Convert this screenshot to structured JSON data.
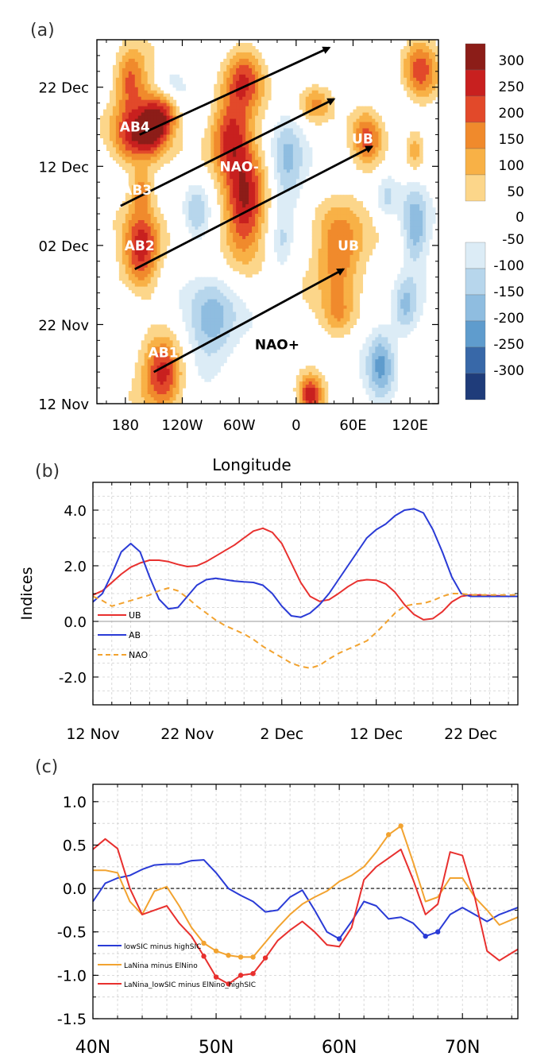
{
  "panel_labels": [
    "(a)",
    "(b)",
    "(c)"
  ],
  "chart_data": [
    {
      "panel": "(a)",
      "type": "heatmap",
      "xlabel": "Longitude",
      "ylabel": "",
      "x_ticks": [
        "180",
        "120W",
        "60W",
        "0",
        "60E",
        "120E"
      ],
      "x_tick_values": [
        -180,
        -120,
        -60,
        0,
        60,
        120
      ],
      "y_ticks": [
        "12 Nov",
        "22 Nov",
        "02 Dec",
        "12 Dec",
        "22 Dec"
      ],
      "y_tick_days": [
        0,
        10,
        20,
        30,
        40
      ],
      "xlim": [
        -210,
        150
      ],
      "ylim_days": [
        0,
        46
      ],
      "colorbar_levels": [
        300,
        250,
        200,
        150,
        100,
        50,
        0,
        -50,
        -100,
        -150,
        -200,
        -250,
        -300
      ],
      "colorbar_colors": [
        "#8c1d18",
        "#c8201f",
        "#e2492a",
        "#f08a2c",
        "#f8b146",
        "#fcd68a",
        "#fdeebb",
        "#ffffff",
        "#dcecf6",
        "#b7d6ec",
        "#8fbde0",
        "#5f9ccd",
        "#3868a8",
        "#1f3c7a",
        "#13234d"
      ],
      "annotations": [
        {
          "label": "AB4",
          "x": -170,
          "y": 35
        },
        {
          "label": "AB3",
          "x": -168,
          "y": 27
        },
        {
          "label": "AB2",
          "x": -165,
          "y": 20
        },
        {
          "label": "AB1",
          "x": -140,
          "y": 6.5
        },
        {
          "label": "NAO-",
          "x": -60,
          "y": 30
        },
        {
          "label": "NAO+",
          "x": -20,
          "y": 7.5
        },
        {
          "label": "UB",
          "x": 55,
          "y": 20
        },
        {
          "label": "UB",
          "x": 70,
          "y": 33.5
        }
      ],
      "arrows": [
        {
          "x1": -150,
          "y1": 4,
          "x2": 50,
          "y2": 17
        },
        {
          "x1": -170,
          "y1": 17,
          "x2": 80,
          "y2": 32.5
        },
        {
          "x1": -185,
          "y1": 25,
          "x2": 40,
          "y2": 38.5
        },
        {
          "x1": -165,
          "y1": 34,
          "x2": 35,
          "y2": 45
        }
      ],
      "features": [
        {
          "cx": -175,
          "cy": 41,
          "rx": 18,
          "ry": 4,
          "peak": 230
        },
        {
          "cx": -135,
          "cy": 37,
          "rx": 14,
          "ry": 3,
          "peak": 180
        },
        {
          "cx": -170,
          "cy": 34,
          "rx": 25,
          "ry": 4,
          "peak": 290
        },
        {
          "cx": -150,
          "cy": 35.5,
          "rx": 14,
          "ry": 3.5,
          "peak": 220
        },
        {
          "cx": -163,
          "cy": 27,
          "rx": 12,
          "ry": 2.5,
          "peak": 150
        },
        {
          "cx": -163,
          "cy": 19.5,
          "rx": 20,
          "ry": 5.5,
          "peak": 300
        },
        {
          "cx": -55,
          "cy": 25,
          "rx": 22,
          "ry": 7,
          "peak": 320
        },
        {
          "cx": -70,
          "cy": 34,
          "rx": 22,
          "ry": 5,
          "peak": 270
        },
        {
          "cx": -55,
          "cy": 41,
          "rx": 20,
          "ry": 4,
          "peak": 210
        },
        {
          "cx": 45,
          "cy": 19,
          "rx": 26,
          "ry": 6.5,
          "peak": 230
        },
        {
          "cx": 45,
          "cy": 11,
          "rx": 16,
          "ry": 3,
          "peak": 110
        },
        {
          "cx": 75,
          "cy": 33.5,
          "rx": 16,
          "ry": 3.5,
          "peak": 190
        },
        {
          "cx": 20,
          "cy": 38,
          "rx": 18,
          "ry": 2.5,
          "peak": 170
        },
        {
          "cx": 130,
          "cy": 42,
          "rx": 18,
          "ry": 4,
          "peak": 220
        },
        {
          "cx": -140,
          "cy": 4,
          "rx": 22,
          "ry": 4.5,
          "peak": 310
        },
        {
          "cx": 15,
          "cy": 1,
          "rx": 12,
          "ry": 2.5,
          "peak": 260
        },
        {
          "cx": 125,
          "cy": 32,
          "rx": 10,
          "ry": 3,
          "peak": 130
        },
        {
          "cx": -10,
          "cy": 30,
          "rx": 18,
          "ry": 7,
          "peak": -170
        },
        {
          "cx": -90,
          "cy": 10,
          "rx": 28,
          "ry": 6,
          "peak": -200
        },
        {
          "cx": -105,
          "cy": 24,
          "rx": 14,
          "ry": 4,
          "peak": -150
        },
        {
          "cx": -130,
          "cy": 40,
          "rx": 16,
          "ry": 3,
          "peak": -120
        },
        {
          "cx": 90,
          "cy": 5,
          "rx": 15,
          "ry": 5,
          "peak": -200
        },
        {
          "cx": 115,
          "cy": 12,
          "rx": 14,
          "ry": 4,
          "peak": -170
        },
        {
          "cx": 125,
          "cy": 22,
          "rx": 14,
          "ry": 5,
          "peak": -180
        },
        {
          "cx": -15,
          "cy": 20,
          "rx": 10,
          "ry": 4,
          "peak": -90
        },
        {
          "cx": -175,
          "cy": 12,
          "rx": 15,
          "ry": 3,
          "peak": -80
        },
        {
          "cx": 95,
          "cy": 26,
          "rx": 12,
          "ry": 3,
          "peak": -110
        }
      ]
    },
    {
      "panel": "(b)",
      "type": "line",
      "ylabel": "Indices",
      "xlabel": "",
      "x_ticks": [
        "12 Nov",
        "22 Nov",
        "2 Dec",
        "12 Dec",
        "22 Dec"
      ],
      "x_tick_days": [
        0,
        10,
        20,
        30,
        40
      ],
      "xlim": [
        0,
        45
      ],
      "ylim": [
        -3.0,
        5.0
      ],
      "y_ticks": [
        "4.0",
        "2.0",
        "0.0",
        "-2.0"
      ],
      "y_tick_values": [
        4.0,
        2.0,
        0.0,
        -2.0
      ],
      "grid": true,
      "legend_position": "bottom-left",
      "series": [
        {
          "name": "UB",
          "color": "#e8302e",
          "dash": false,
          "x": [
            0,
            1,
            2,
            3,
            4,
            5,
            6,
            7,
            8,
            9,
            10,
            11,
            12,
            13,
            14,
            15,
            16,
            17,
            18,
            19,
            20,
            21,
            22,
            23,
            24,
            25,
            26,
            27,
            28,
            29,
            30,
            31,
            32,
            33,
            34,
            35,
            36,
            37,
            38,
            39,
            40,
            41,
            42,
            43,
            44,
            45
          ],
          "y": [
            0.95,
            1.1,
            1.4,
            1.7,
            1.95,
            2.1,
            2.2,
            2.2,
            2.15,
            2.05,
            1.97,
            2.0,
            2.15,
            2.35,
            2.55,
            2.75,
            3.0,
            3.25,
            3.35,
            3.2,
            2.8,
            2.1,
            1.4,
            0.9,
            0.72,
            0.78,
            1.0,
            1.25,
            1.45,
            1.5,
            1.48,
            1.35,
            1.05,
            0.6,
            0.25,
            0.06,
            0.1,
            0.35,
            0.7,
            0.9,
            0.95,
            0.95,
            0.93,
            0.92,
            0.9,
            0.9
          ]
        },
        {
          "name": "AB",
          "color": "#2a3bd6",
          "dash": false,
          "x": [
            0,
            1,
            2,
            3,
            4,
            5,
            6,
            7,
            8,
            9,
            10,
            11,
            12,
            13,
            14,
            15,
            16,
            17,
            18,
            19,
            20,
            21,
            22,
            23,
            24,
            25,
            26,
            27,
            28,
            29,
            30,
            31,
            32,
            33,
            34,
            35,
            36,
            37,
            38,
            39,
            40,
            41,
            42,
            43,
            44,
            45
          ],
          "y": [
            0.7,
            1.0,
            1.7,
            2.5,
            2.8,
            2.5,
            1.6,
            0.8,
            0.45,
            0.5,
            0.9,
            1.3,
            1.5,
            1.55,
            1.5,
            1.45,
            1.42,
            1.4,
            1.3,
            1.0,
            0.55,
            0.2,
            0.15,
            0.3,
            0.6,
            1.0,
            1.5,
            2.0,
            2.5,
            3.0,
            3.3,
            3.5,
            3.8,
            4.0,
            4.05,
            3.9,
            3.3,
            2.5,
            1.6,
            1.0,
            0.9,
            0.9,
            0.9,
            0.9,
            0.9,
            0.9
          ]
        },
        {
          "name": "NAO",
          "color": "#f2a330",
          "dash": true,
          "x": [
            0,
            1,
            2,
            3,
            4,
            5,
            6,
            7,
            8,
            9,
            10,
            11,
            12,
            13,
            14,
            15,
            16,
            17,
            18,
            19,
            20,
            21,
            22,
            23,
            24,
            25,
            26,
            27,
            28,
            29,
            30,
            31,
            32,
            33,
            34,
            35,
            36,
            37,
            38,
            39,
            40,
            41,
            42,
            43,
            44,
            45
          ],
          "y": [
            0.9,
            0.75,
            0.55,
            0.65,
            0.75,
            0.85,
            0.95,
            1.1,
            1.2,
            1.1,
            0.85,
            0.55,
            0.3,
            0.05,
            -0.15,
            -0.3,
            -0.45,
            -0.65,
            -0.9,
            -1.1,
            -1.3,
            -1.5,
            -1.62,
            -1.68,
            -1.58,
            -1.35,
            -1.15,
            -1.0,
            -0.85,
            -0.7,
            -0.4,
            -0.05,
            0.3,
            0.55,
            0.62,
            0.65,
            0.75,
            0.9,
            1.0,
            1.0,
            0.95,
            0.95,
            0.95,
            0.95,
            0.95,
            0.95
          ]
        }
      ]
    },
    {
      "panel": "(c)",
      "type": "line",
      "xlabel": "",
      "ylabel": "",
      "x_ticks": [
        "40N",
        "50N",
        "60N",
        "70N"
      ],
      "x_tick_values": [
        40,
        50,
        60,
        70
      ],
      "xlim": [
        40,
        74.5
      ],
      "ylim": [
        -1.5,
        1.2
      ],
      "y_ticks": [
        "1.0",
        "0.5",
        "0.0",
        "-0.5",
        "-1.0",
        "-1.5"
      ],
      "y_tick_values": [
        1.0,
        0.5,
        0.0,
        -0.5,
        -1.0,
        -1.5
      ],
      "grid": true,
      "legend_position": "bottom-left",
      "series": [
        {
          "name": "lowSIC minus highSIC",
          "color": "#2a3bd6",
          "x": [
            40,
            41,
            42,
            43,
            44,
            45,
            46,
            47,
            48,
            49,
            50,
            51,
            52,
            53,
            54,
            55,
            56,
            57,
            58,
            59,
            60,
            61,
            62,
            63,
            64,
            65,
            66,
            67,
            68,
            69,
            70,
            71,
            72,
            73,
            74.5
          ],
          "y": [
            -0.15,
            0.06,
            0.12,
            0.15,
            0.22,
            0.27,
            0.28,
            0.28,
            0.32,
            0.33,
            0.18,
            0.0,
            -0.08,
            -0.15,
            -0.27,
            -0.25,
            -0.1,
            -0.02,
            -0.25,
            -0.5,
            -0.58,
            -0.38,
            -0.15,
            -0.2,
            -0.35,
            -0.33,
            -0.4,
            -0.55,
            -0.5,
            -0.3,
            -0.22,
            -0.3,
            -0.38,
            -0.3,
            -0.22
          ],
          "marked": [
            {
              "x": 60,
              "y": -0.58
            },
            {
              "x": 67,
              "y": -0.55
            },
            {
              "x": 68,
              "y": -0.5
            }
          ]
        },
        {
          "name": "LaNina minus ElNino",
          "color": "#f2a330",
          "x": [
            40,
            41,
            42,
            43,
            44,
            45,
            46,
            47,
            48,
            49,
            50,
            51,
            52,
            53,
            54,
            55,
            56,
            57,
            58,
            59,
            60,
            61,
            62,
            63,
            64,
            65,
            66,
            67,
            68,
            69,
            70,
            71,
            72,
            73,
            74.5
          ],
          "y": [
            0.21,
            0.21,
            0.18,
            -0.15,
            -0.3,
            -0.03,
            0.02,
            -0.2,
            -0.45,
            -0.63,
            -0.72,
            -0.77,
            -0.79,
            -0.79,
            -0.62,
            -0.45,
            -0.3,
            -0.18,
            -0.1,
            -0.03,
            0.08,
            0.15,
            0.25,
            0.42,
            0.62,
            0.72,
            0.3,
            -0.15,
            -0.1,
            0.12,
            0.12,
            -0.1,
            -0.25,
            -0.42,
            -0.33
          ],
          "marked": [
            {
              "x": 49,
              "y": -0.63
            },
            {
              "x": 50,
              "y": -0.72
            },
            {
              "x": 51,
              "y": -0.77
            },
            {
              "x": 52,
              "y": -0.79
            },
            {
              "x": 53,
              "y": -0.79
            },
            {
              "x": 64,
              "y": 0.62
            },
            {
              "x": 65,
              "y": 0.72
            }
          ]
        },
        {
          "name": "LaNina_lowSIC minus ElNino_highSIC",
          "color": "#e8302e",
          "x": [
            40,
            41,
            42,
            43,
            44,
            45,
            46,
            47,
            48,
            49,
            50,
            51,
            52,
            53,
            54,
            55,
            56,
            57,
            58,
            59,
            60,
            61,
            62,
            63,
            64,
            65,
            66,
            67,
            68,
            69,
            70,
            71,
            72,
            73,
            74.5
          ],
          "y": [
            0.45,
            0.57,
            0.46,
            0.0,
            -0.3,
            -0.25,
            -0.2,
            -0.4,
            -0.55,
            -0.78,
            -1.02,
            -1.1,
            -1.0,
            -0.98,
            -0.8,
            -0.6,
            -0.48,
            -0.38,
            -0.5,
            -0.65,
            -0.67,
            -0.45,
            0.1,
            0.25,
            0.35,
            0.45,
            0.1,
            -0.3,
            -0.18,
            0.42,
            0.38,
            -0.1,
            -0.72,
            -0.83,
            -0.7
          ],
          "marked": [
            {
              "x": 49,
              "y": -0.78
            },
            {
              "x": 50,
              "y": -1.02
            },
            {
              "x": 51,
              "y": -1.1
            },
            {
              "x": 52,
              "y": -1.0
            },
            {
              "x": 53,
              "y": -0.98
            },
            {
              "x": 54,
              "y": -0.8
            }
          ]
        }
      ]
    }
  ]
}
